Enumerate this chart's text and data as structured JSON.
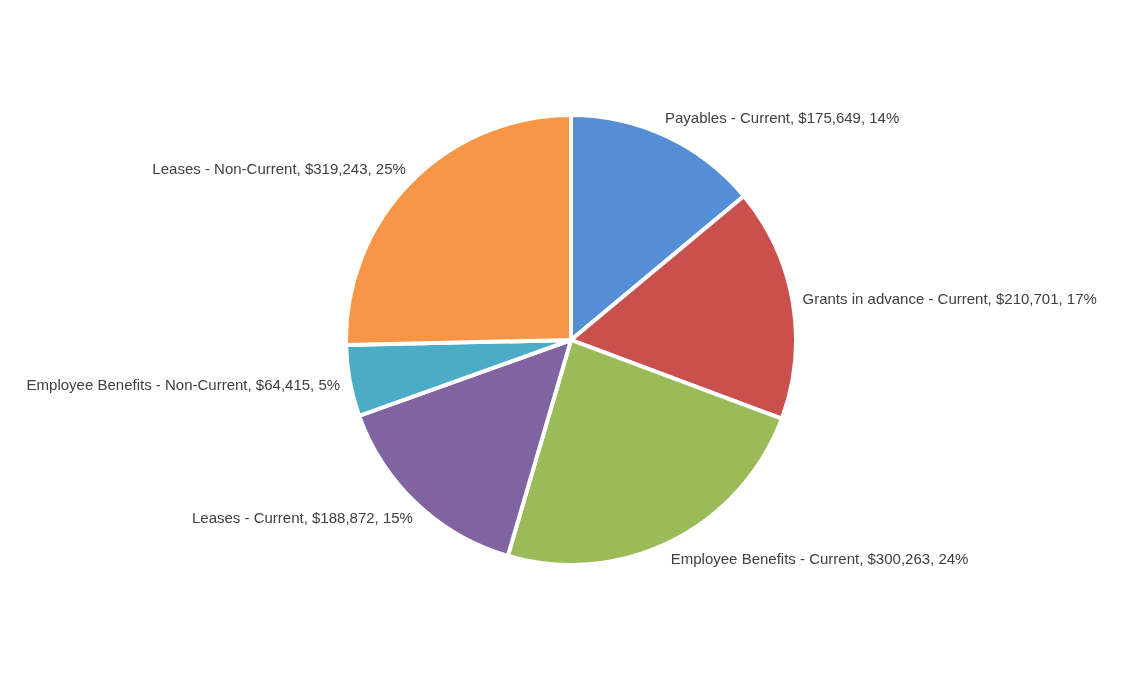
{
  "chart_data": {
    "type": "pie",
    "categories": [
      "Payables - Current",
      "Grants in advance - Current",
      "Employee Benefits - Current",
      "Leases - Current",
      "Employee Benefits - Non-Current",
      "Leases - Non-Current"
    ],
    "values": [
      175649,
      210701,
      300263,
      188872,
      64415,
      319243
    ],
    "value_labels": [
      "$175,649, 14%",
      "$210,701, 17%",
      "$300,263, 24%",
      "$188,872, 15%",
      "$64,415, 5%",
      "$319,243, 25%"
    ],
    "colors": [
      "#558ed5",
      "#c9504d",
      "#9bbb59",
      "#8064a2",
      "#4bacc6",
      "#f79646"
    ]
  }
}
